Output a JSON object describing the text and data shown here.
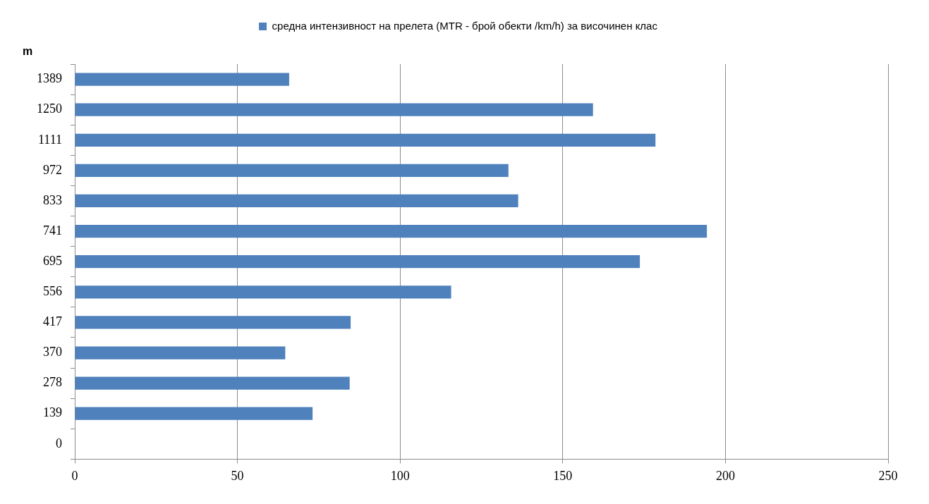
{
  "chart_data": {
    "type": "bar",
    "orientation": "horizontal",
    "ylabel": "m",
    "categories": [
      "1389",
      "1250",
      "1111",
      "972",
      "833",
      "741",
      "695",
      "556",
      "417",
      "370",
      "278",
      "139",
      "0"
    ],
    "series": [
      {
        "name": "средна интензивност на прелета (MTR - брой обекти /km/h) за височинен клас",
        "color": "#4f81bd",
        "values": [
          65.9,
          159.3,
          178.5,
          133.3,
          136.3,
          194.3,
          173.7,
          115.7,
          84.8,
          64.7,
          84.5,
          73.1,
          null
        ]
      }
    ],
    "xlim": [
      0,
      250
    ],
    "xticks": [
      0,
      50,
      100,
      150,
      200,
      250
    ],
    "grid": "x",
    "legend": "top"
  }
}
